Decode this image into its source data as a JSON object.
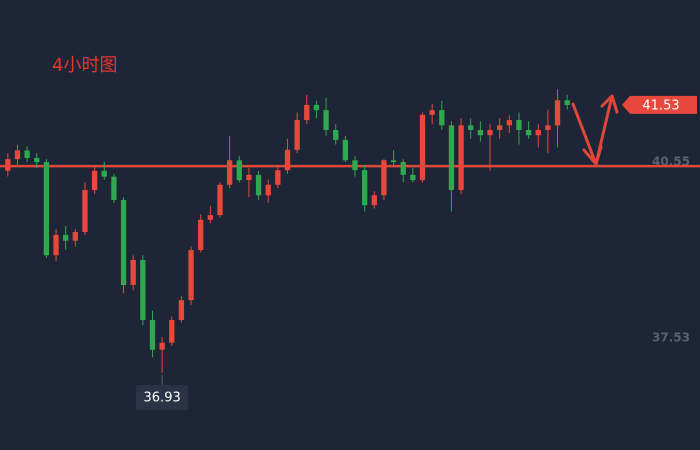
{
  "chart_data": {
    "type": "candlestick",
    "title": "4小时图",
    "ohlc": [
      [
        40.4,
        40.7,
        40.3,
        40.6
      ],
      [
        40.6,
        40.85,
        40.5,
        40.75
      ],
      [
        40.75,
        40.82,
        40.55,
        40.62
      ],
      [
        40.62,
        40.7,
        40.45,
        40.55
      ],
      [
        40.55,
        40.6,
        38.9,
        38.95
      ],
      [
        38.95,
        39.4,
        38.85,
        39.3
      ],
      [
        39.3,
        39.45,
        39.05,
        39.2
      ],
      [
        39.2,
        39.4,
        39.1,
        39.35
      ],
      [
        39.35,
        40.2,
        39.3,
        40.07
      ],
      [
        40.07,
        40.5,
        40.0,
        40.4
      ],
      [
        40.4,
        40.55,
        40.25,
        40.3
      ],
      [
        40.3,
        40.35,
        39.85,
        39.9
      ],
      [
        39.9,
        39.95,
        38.3,
        38.44
      ],
      [
        38.44,
        38.95,
        38.35,
        38.87
      ],
      [
        38.87,
        38.95,
        37.75,
        37.84
      ],
      [
        37.84,
        38.0,
        37.2,
        37.33
      ],
      [
        37.33,
        37.55,
        36.93,
        37.45
      ],
      [
        37.45,
        37.9,
        37.4,
        37.84
      ],
      [
        37.84,
        38.25,
        37.8,
        38.18
      ],
      [
        38.18,
        39.1,
        38.1,
        39.04
      ],
      [
        39.04,
        39.65,
        39.0,
        39.56
      ],
      [
        39.56,
        39.8,
        39.5,
        39.64
      ],
      [
        39.64,
        40.2,
        39.6,
        40.16
      ],
      [
        40.16,
        41.0,
        40.1,
        40.58
      ],
      [
        40.58,
        40.65,
        40.2,
        40.24
      ],
      [
        40.24,
        40.45,
        39.95,
        40.33
      ],
      [
        40.33,
        40.4,
        39.9,
        39.98
      ],
      [
        39.98,
        40.25,
        39.85,
        40.16
      ],
      [
        40.16,
        40.5,
        40.1,
        40.41
      ],
      [
        40.41,
        40.95,
        40.35,
        40.76
      ],
      [
        40.76,
        41.4,
        40.7,
        41.27
      ],
      [
        41.27,
        41.7,
        41.2,
        41.53
      ],
      [
        41.53,
        41.6,
        41.3,
        41.44
      ],
      [
        41.44,
        41.65,
        41.0,
        41.1
      ],
      [
        41.1,
        41.2,
        40.85,
        40.93
      ],
      [
        40.93,
        41.0,
        40.55,
        40.58
      ],
      [
        40.58,
        40.65,
        40.3,
        40.41
      ],
      [
        40.41,
        40.5,
        39.7,
        39.81
      ],
      [
        39.81,
        40.05,
        39.75,
        39.98
      ],
      [
        39.98,
        40.6,
        39.9,
        40.58
      ],
      [
        40.58,
        40.75,
        40.5,
        40.55
      ],
      [
        40.55,
        40.6,
        40.2,
        40.33
      ],
      [
        40.33,
        40.45,
        40.2,
        40.24
      ],
      [
        40.24,
        41.4,
        40.2,
        41.36
      ],
      [
        41.36,
        41.55,
        41.2,
        41.44
      ],
      [
        41.44,
        41.6,
        41.1,
        41.18
      ],
      [
        41.18,
        41.25,
        39.7,
        40.07
      ],
      [
        40.07,
        41.3,
        40.0,
        41.18
      ],
      [
        41.18,
        41.3,
        40.95,
        41.1
      ],
      [
        41.1,
        41.25,
        40.9,
        41.01
      ],
      [
        41.01,
        41.2,
        40.4,
        41.1
      ],
      [
        41.1,
        41.3,
        40.95,
        41.18
      ],
      [
        41.18,
        41.35,
        41.05,
        41.27
      ],
      [
        41.27,
        41.4,
        40.85,
        41.1
      ],
      [
        41.1,
        41.25,
        40.95,
        41.01
      ],
      [
        41.01,
        41.2,
        40.8,
        41.1
      ],
      [
        41.1,
        41.45,
        40.7,
        41.18
      ],
      [
        41.18,
        41.8,
        40.8,
        41.61
      ],
      [
        41.61,
        41.7,
        41.45,
        41.53
      ]
    ],
    "up_color": "#e8483c",
    "down_color": "#2fa84f",
    "ylim": [
      35.61,
      43.33
    ],
    "yticks": [
      40.55,
      37.53
    ],
    "hline": 40.48,
    "hline_color": "#e0473b",
    "last_price": 41.53,
    "low_price": 36.93
  }
}
